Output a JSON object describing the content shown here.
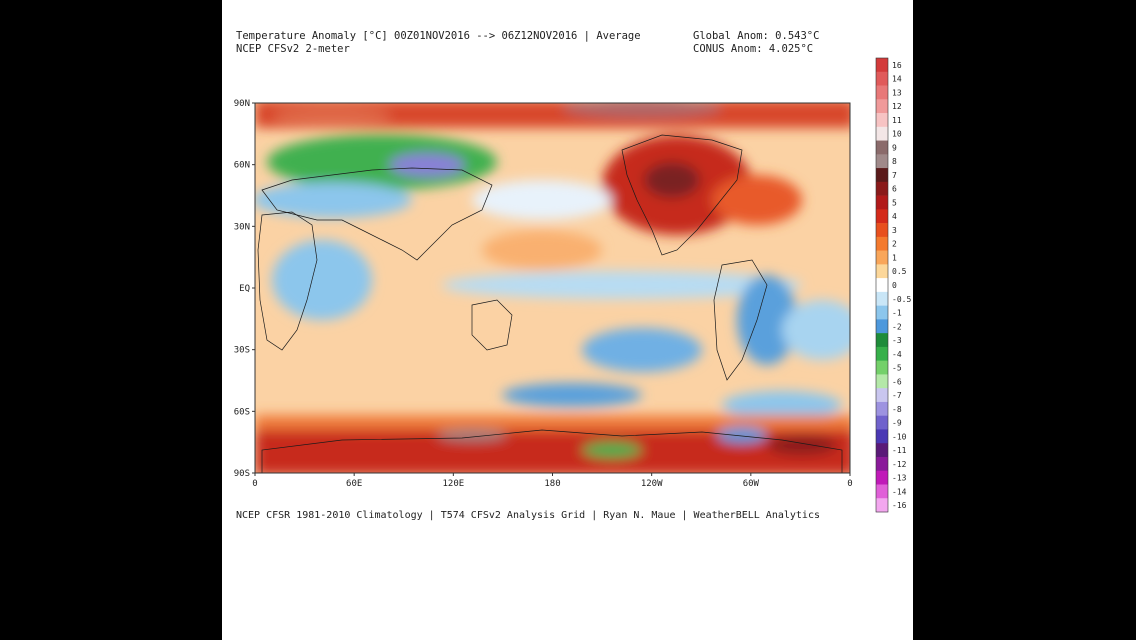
{
  "header": {
    "title_line1": "Temperature Anomaly [°C] 00Z01NOV2016 --> 06Z12NOV2016 | Average",
    "title_line2": "NCEP CFSv2 2-meter",
    "global_anom": "Global Anom: 0.543°C",
    "conus_anom": "CONUS Anom: 4.025°C"
  },
  "map": {
    "lat_labels": [
      "90N",
      "60N",
      "30N",
      "EQ",
      "30S",
      "60S",
      "90S"
    ],
    "lon_labels": [
      "0",
      "60E",
      "120E",
      "180",
      "120W",
      "60W",
      "0"
    ]
  },
  "colorbar": {
    "labels": [
      "16",
      "14",
      "13",
      "12",
      "11",
      "10",
      "9",
      "8",
      "7",
      "6",
      "5",
      "4",
      "3",
      "2",
      "1",
      "0.5",
      "0",
      "-0.5",
      "-1",
      "-2",
      "-3",
      "-4",
      "-5",
      "-6",
      "-7",
      "-8",
      "-9",
      "-10",
      "-11",
      "-12",
      "-13",
      "-14",
      "-16"
    ],
    "colors": [
      "#d33a3a",
      "#e05a5a",
      "#e87878",
      "#f09a9a",
      "#f7c3c3",
      "#f3e6e6",
      "#8b6b6b",
      "#a08a8a",
      "#5a1a1a",
      "#8a1a1a",
      "#b11a1a",
      "#d42a1a",
      "#e8501e",
      "#f47a2e",
      "#f9a65a",
      "#fcd79a",
      "#ffffff",
      "#c9e6f7",
      "#8cc6ec",
      "#4d98dc",
      "#1e8c3a",
      "#36b04a",
      "#74d06a",
      "#b4e8a8",
      "#c9c6ef",
      "#9d93e0",
      "#7062cc",
      "#4a38b4",
      "#5a1a78",
      "#8a1a9a",
      "#c01ab8",
      "#e060d8",
      "#f3a7ef"
    ]
  },
  "footer": "NCEP CFSR 1981-2010 Climatology | T574 CFSv2 Analysis Grid | Ryan N. Maue | WeatherBELL Analytics"
}
